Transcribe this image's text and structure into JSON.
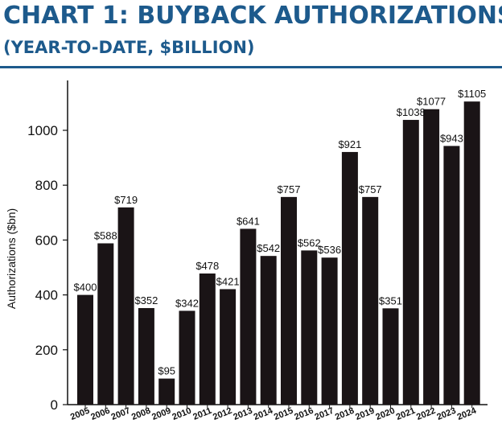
{
  "header": {
    "title": "CHART 1: BUYBACK AUTHORIZATIONS",
    "subtitle": "(YEAR-TO-DATE, $BILLION)"
  },
  "colors": {
    "accent": "#1d5a8c",
    "bar": "#1a1416"
  },
  "chart_data": {
    "type": "bar",
    "title": "CHART 1: BUYBACK AUTHORIZATIONS",
    "subtitle": "(YEAR-TO-DATE, $BILLION)",
    "xlabel": "",
    "ylabel": "Authorizations ($bn)",
    "ylim": [
      0,
      1150
    ],
    "yticks": [
      0,
      200,
      400,
      600,
      800,
      1000
    ],
    "grid": false,
    "categories": [
      "2005",
      "2006",
      "2007",
      "2008",
      "2009",
      "2010",
      "2011",
      "2012",
      "2013",
      "2014",
      "2015",
      "2016",
      "2017",
      "2018",
      "2019",
      "2020",
      "2021",
      "2022",
      "2023",
      "2024"
    ],
    "values": [
      400,
      588,
      719,
      352,
      95,
      342,
      478,
      421,
      641,
      542,
      757,
      562,
      536,
      921,
      757,
      351,
      1038,
      1077,
      943,
      1105
    ],
    "data_labels": [
      "$400",
      "$588",
      "$719",
      "$352",
      "$95",
      "$342",
      "$478",
      "$421",
      "$641",
      "$542",
      "$757",
      "$562",
      "$536",
      "$921",
      "$757",
      "$351",
      "$1038",
      "$1077",
      "$943",
      "$1105"
    ]
  }
}
